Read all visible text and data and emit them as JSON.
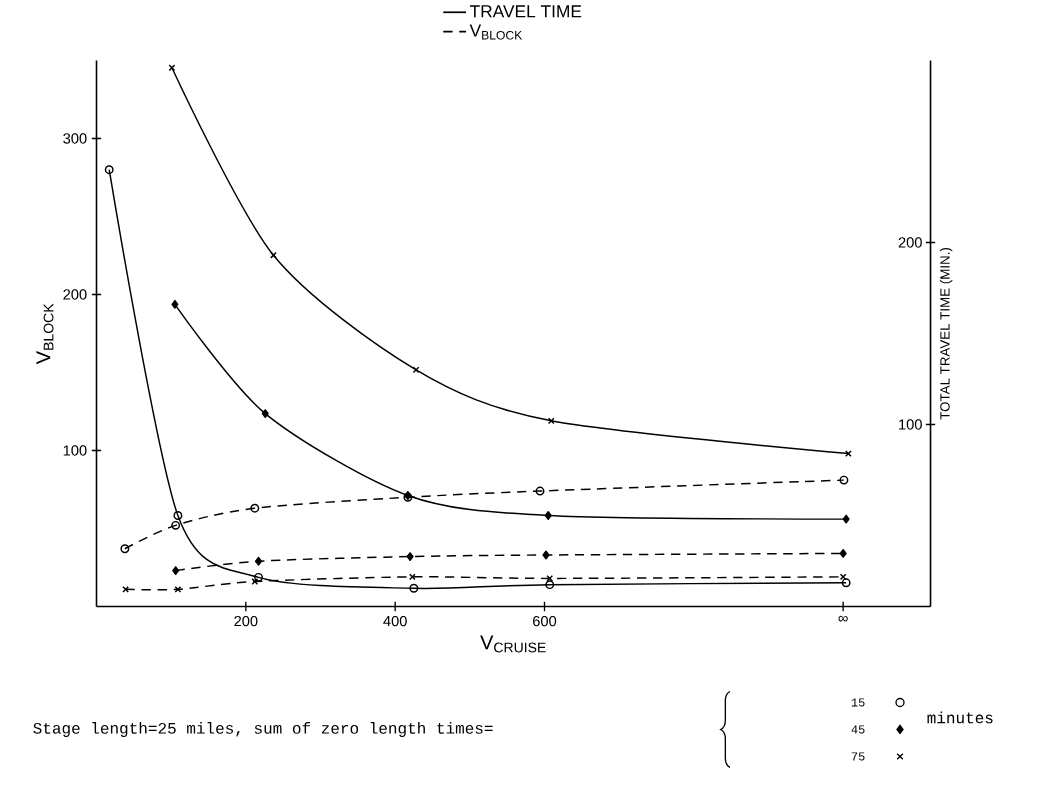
{
  "chart_data": {
    "type": "line",
    "xlabel": "V$_{CRUISE}$",
    "ylabel": "V$_{BLOCK}$",
    "y2label": "TOTAL TRAVEL TIME (MIN.)",
    "xlim": [
      0,
      1117
    ],
    "xticks": [
      200,
      400,
      600,
      {
        "value": 1000,
        "label": "∞"
      }
    ],
    "ylim": [
      0,
      350
    ],
    "yticks": [
      100,
      200,
      300
    ],
    "y2lim": [
      0,
      300
    ],
    "y2ticks": [
      100,
      200
    ],
    "legend": "top",
    "annotations": [
      "Stage length=25 miles, sum of zero length times=",
      "15",
      "45",
      "75",
      "minutes"
    ],
    "series": [
      {
        "name": "TRAVEL TIME",
        "axis": "y2",
        "color": "#000000",
        "marker": "circle",
        "line_style": "solid",
        "x": [
          17,
          109,
          217,
          425,
          607,
          1004
        ],
        "values": [
          240,
          50,
          16,
          10,
          12,
          13
        ]
      },
      {
        "axis": "y2",
        "color": "#000000",
        "marker": "diamond",
        "line_style": "solid",
        "x": [
          105,
          226,
          417,
          605,
          1004
        ],
        "values": [
          166,
          106,
          61,
          50,
          48
        ]
      },
      {
        "axis": "y2",
        "color": "#000000",
        "marker": "cross",
        "line_style": "solid",
        "x": [
          101,
          237,
          428,
          609,
          1007
        ],
        "values": [
          296,
          193,
          130,
          102,
          84
        ]
      },
      {
        "name": "V$_{BLOCK}$",
        "axis": "y",
        "color": "#000000",
        "marker": "circle",
        "line_style": "dashed",
        "x": [
          38,
          106,
          212,
          417,
          594,
          1001
        ],
        "values": [
          37,
          52,
          63,
          70,
          74,
          81
        ]
      },
      {
        "axis": "y",
        "color": "#000000",
        "marker": "diamond",
        "line_style": "dashed",
        "x": [
          106,
          217,
          420,
          602,
          1000
        ],
        "values": [
          23,
          29,
          32,
          33,
          34
        ]
      },
      {
        "axis": "y",
        "color": "#000000",
        "marker": "cross",
        "line_style": "dashed",
        "x": [
          39,
          109,
          212,
          423,
          607,
          1000
        ],
        "values": [
          11,
          11,
          16,
          19,
          18,
          19
        ]
      }
    ]
  }
}
